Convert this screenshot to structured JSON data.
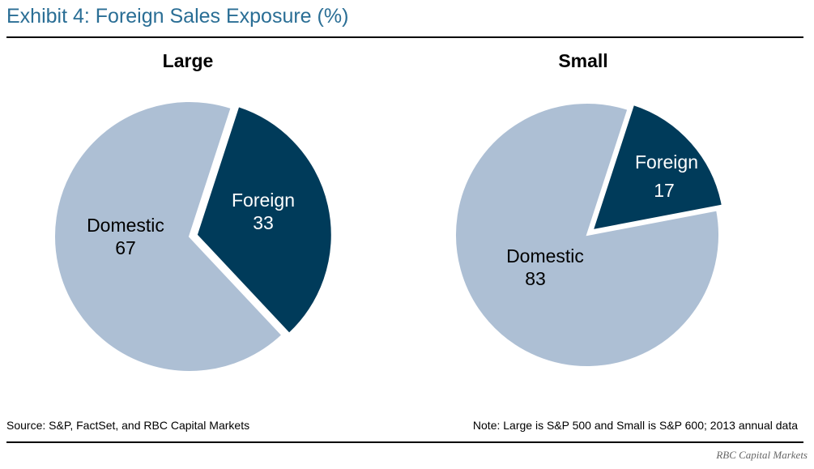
{
  "title": "Exhibit 4: Foreign Sales Exposure (%)",
  "source": "Source: S&P, FactSet, and RBC Capital Markets",
  "note": "Note: Large is S&P 500 and Small is S&P 600; 2013 annual data",
  "brand": "RBC Capital Markets",
  "colors": {
    "domestic": "#adbfd4",
    "foreign": "#003b5a",
    "title": "#2a6e95"
  },
  "chart_data": [
    {
      "type": "pie",
      "title": "Large",
      "slices": [
        {
          "label": "Domestic",
          "value": 67
        },
        {
          "label": "Foreign",
          "value": 33,
          "exploded": true
        }
      ]
    },
    {
      "type": "pie",
      "title": "Small",
      "slices": [
        {
          "label": "Domestic",
          "value": 83
        },
        {
          "label": "Foreign",
          "value": 17,
          "exploded": true
        }
      ]
    }
  ]
}
